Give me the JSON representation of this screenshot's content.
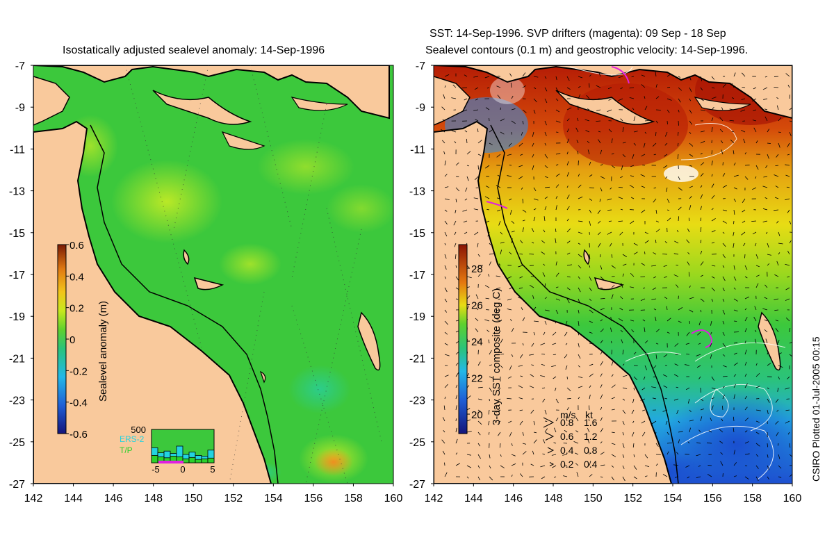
{
  "left_panel": {
    "title": "Isostatically adjusted sealevel anomaly: 14-Sep-1996",
    "colorbar": {
      "label": "Sealevel anomaly (m)",
      "ticks": [
        "0.6",
        "0.4",
        "0.2",
        "0",
        "-0.2",
        "-0.4",
        "-0.6"
      ],
      "colors": [
        "#1a1a8c",
        "#1f5fd6",
        "#22b8e8",
        "#2bc37a",
        "#5fd12e",
        "#c8e81e",
        "#f2c41a",
        "#e07a12",
        "#b83008",
        "#7a1a04"
      ]
    },
    "histogram": {
      "ymax_label": "500",
      "x_ticks": [
        "-5",
        "0",
        "5"
      ],
      "legend_ers2": "ERS-2",
      "legend_tp": "T/P",
      "ers2_color": "#22d3e0",
      "tp_color": "#2bd12b",
      "marker_color": "#e020e0",
      "ers2_values": [
        0.45,
        0.3,
        0.35,
        0.28,
        0.5,
        0.25,
        0.32,
        0.22,
        0.2,
        0.38
      ],
      "tp_values": [
        0.22,
        0.18,
        0.15,
        0.2,
        0.18,
        0.12,
        0.16,
        0.1,
        0.12,
        0.14
      ]
    }
  },
  "right_panel": {
    "title_line1": "SST: 14-Sep-1996. SVP drifters (magenta): 09 Sep - 18 Sep",
    "title_line2": "Sealevel contours (0.1 m) and geostrophic velocity: 14-Sep-1996.",
    "colorbar": {
      "label": "3-day SST composite (deg C)",
      "ticks": [
        "28",
        "26",
        "24",
        "22",
        "20"
      ]
    },
    "velocity_legend": {
      "header_ms": "m/s",
      "header_kt": "kt",
      "rows": [
        {
          "ms": "0.8",
          "kt": "1.6"
        },
        {
          "ms": "0.6",
          "kt": "1.2"
        },
        {
          "ms": "0.4",
          "kt": "0.8"
        },
        {
          "ms": "0.2",
          "kt": "0.4"
        }
      ]
    }
  },
  "axes": {
    "y_ticks": [
      "-7",
      "-9",
      "-11",
      "-13",
      "-15",
      "-17",
      "-19",
      "-21",
      "-23",
      "-25",
      "-27"
    ],
    "x_ticks": [
      "142",
      "144",
      "146",
      "148",
      "150",
      "152",
      "154",
      "156",
      "158",
      "160"
    ]
  },
  "credit": "CSIRO Plotted 01-Jul-2005 00:15",
  "colors": {
    "land": "#f9c99c",
    "sea_green": "#3cc83c",
    "sst_red": "#b51c05",
    "sst_orange": "#e5780f",
    "sst_yellow": "#e8dc14",
    "sst_green": "#3cc83c",
    "sst_blue": "#1e64dc"
  }
}
